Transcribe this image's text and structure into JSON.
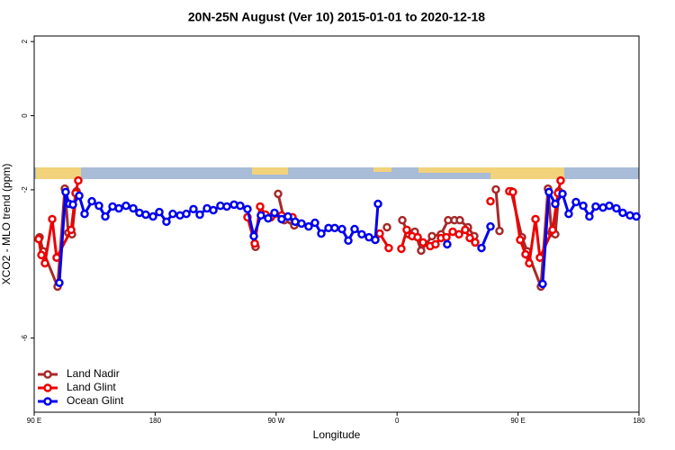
{
  "chart_data": {
    "type": "line",
    "title": "20N-25N August (Ver 10)   2015-01-01 to 2020-12-18",
    "x_label": "Longitude",
    "y_label": "XCO2 - MLO trend (ppm)",
    "xlim": [
      90,
      540
    ],
    "ylim": [
      -8,
      2.15
    ],
    "xticks": [
      {
        "value": 90,
        "label": "90 E"
      },
      {
        "value": 180,
        "label": "180"
      },
      {
        "value": 270,
        "label": "90 W"
      },
      {
        "value": 360,
        "label": "0"
      },
      {
        "value": 450,
        "label": "90 E"
      },
      {
        "value": 540,
        "label": "180"
      }
    ],
    "yticks": [
      2,
      0,
      -2,
      -6
    ],
    "legend": "bottom-left",
    "series": [
      {
        "name": "Land Nadir",
        "color": "#a52a2a",
        "x": [
          94.0,
          96.7,
          107.4,
          112.8,
          115.4,
          118.1,
          121.5,
          null,
          254.7,
          null,
          271.5,
          276.1,
          283.5,
          null,
          352.5,
          null,
          363.9,
          368.6,
          373.2,
          377.9,
          386.0,
          392.7,
          398.0,
          402.7,
          406.7,
          412.7,
          417.4,
          null,
          433.5,
          436.2,
          null,
          444.9,
          452.9,
          456.9,
          467.0,
          472.3,
          475.0,
          477.7,
          480.4
        ],
        "values": [
          -3.28,
          -3.66,
          -4.61,
          -1.97,
          -3.16,
          -3.2,
          -2.04,
          null,
          -3.54,
          null,
          -2.11,
          -2.82,
          -2.96,
          null,
          -3.01,
          null,
          -2.82,
          -3.2,
          -3.13,
          -3.64,
          -3.25,
          -3.2,
          -2.82,
          -2.82,
          -2.82,
          -3.01,
          -3.25,
          null,
          -1.99,
          -3.11,
          null,
          -2.04,
          -3.28,
          -3.66,
          -4.61,
          -1.97,
          -3.16,
          -3.2,
          -2.04
        ]
      },
      {
        "name": "Land Glint",
        "color": "#ee0000",
        "x": [
          93.3,
          95.4,
          98.0,
          103.4,
          106.7,
          117.5,
          120.8,
          122.8,
          null,
          248.7,
          254.1,
          258.1,
          262.1,
          266.1,
          274.1,
          282.2,
          null,
          347.1,
          353.8,
          null,
          363.2,
          367.2,
          371.2,
          375.3,
          379.3,
          384.6,
          388.6,
          392.7,
          396.7,
          401.4,
          406.1,
          410.7,
          414.1,
          418.1,
          null,
          429.5,
          null,
          443.5,
          446.2,
          451.6,
          455.6,
          458.3,
          463.0,
          466.3,
          475.7,
          479.7,
          481.7
        ],
        "values": [
          -3.33,
          -3.76,
          -3.98,
          -2.79,
          -3.83,
          -3.08,
          -2.09,
          -1.75,
          null,
          -2.74,
          -3.45,
          -2.45,
          -2.67,
          -2.74,
          -2.69,
          -2.74,
          null,
          -3.18,
          -3.57,
          null,
          -3.59,
          -3.08,
          -3.25,
          -3.28,
          -3.42,
          -3.52,
          -3.47,
          -3.3,
          -3.28,
          -3.13,
          -3.2,
          -3.08,
          -3.3,
          -3.42,
          null,
          -2.31,
          null,
          -2.04,
          -2.06,
          -3.35,
          -3.74,
          -3.98,
          -2.79,
          -3.83,
          -3.08,
          -2.09,
          -1.75
        ]
      },
      {
        "name": "Ocean Glint",
        "color": "#0000ee",
        "x": [
          108.7,
          113.4,
          116.1,
          118.8,
          123.5,
          127.5,
          132.9,
          138.2,
          142.9,
          148.3,
          153.0,
          158.3,
          163.7,
          168.3,
          173.0,
          178.4,
          183.1,
          188.4,
          193.1,
          198.5,
          203.2,
          208.5,
          213.2,
          218.6,
          223.3,
          228.6,
          233.3,
          238.7,
          243.3,
          248.7,
          253.4,
          258.7,
          264.1,
          268.8,
          274.1,
          278.8,
          284.2,
          288.9,
          294.2,
          298.9,
          303.6,
          309.0,
          313.6,
          319.0,
          323.7,
          328.4,
          333.7,
          339.1,
          343.8,
          345.8,
          null,
          397.3,
          null,
          422.8,
          429.5,
          null,
          468.3,
          473.0,
          477.7,
          483.1,
          487.7,
          493.1,
          498.5,
          503.1,
          507.8,
          513.2,
          517.9,
          523.2,
          527.9,
          533.3,
          538.0
        ],
        "values": [
          -4.51,
          -2.06,
          -2.38,
          -2.4,
          -2.16,
          -2.65,
          -2.31,
          -2.43,
          -2.72,
          -2.45,
          -2.5,
          -2.43,
          -2.5,
          -2.62,
          -2.67,
          -2.72,
          -2.6,
          -2.86,
          -2.65,
          -2.69,
          -2.65,
          -2.52,
          -2.67,
          -2.5,
          -2.55,
          -2.43,
          -2.45,
          -2.4,
          -2.43,
          -2.52,
          -3.25,
          -2.69,
          -2.77,
          -2.62,
          -2.79,
          -2.72,
          -2.86,
          -2.91,
          -2.99,
          -2.89,
          -3.18,
          -3.03,
          -3.03,
          -3.06,
          -3.37,
          -3.06,
          -3.2,
          -3.28,
          -3.35,
          -2.38,
          null,
          -3.47,
          null,
          -3.57,
          -2.99,
          null,
          -4.54,
          -2.06,
          -2.38,
          -2.11,
          -2.65,
          -2.33,
          -2.43,
          -2.72,
          -2.45,
          -2.48,
          -2.43,
          -2.5,
          -2.62,
          -2.69,
          -2.72
        ]
      }
    ]
  }
}
